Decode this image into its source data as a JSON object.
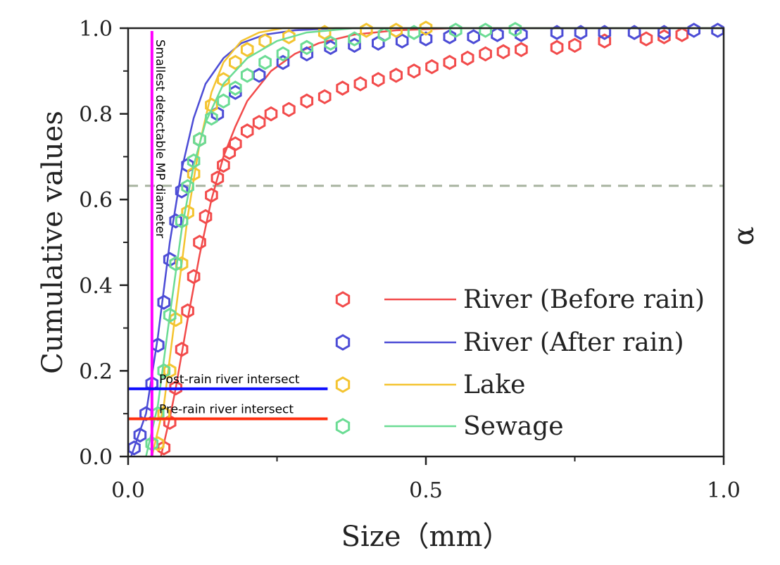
{
  "chart_data": {
    "type": "scatter",
    "xlabel": "Size（mm）",
    "ylabel": "Cumulative values",
    "right_label": "α",
    "xlim": [
      0,
      1.0
    ],
    "ylim": [
      0,
      1.0
    ],
    "xticks": [
      "0.0",
      "0.5",
      "1.0"
    ],
    "yticks": [
      "0.0",
      "0.2",
      "0.4",
      "0.6",
      "0.8",
      "1.0"
    ],
    "legend_position": "bottom-right",
    "grid": false,
    "reference_line": {
      "y": 0.632,
      "style": "dashed",
      "color": "#a8b4a0"
    },
    "annotations": {
      "detect_line": {
        "x": 0.04,
        "label": "Smallest detectable MP diameter",
        "color": "#ff00ff"
      },
      "post_rain": {
        "y": 0.158,
        "x_end": 0.335,
        "label": "Post-rain river intersect",
        "color": "#1010ff"
      },
      "pre_rain": {
        "y": 0.088,
        "x_end": 0.335,
        "label": "Pre-rain river intersect",
        "color": "#ff3010"
      }
    },
    "series": [
      {
        "name": "River (Before rain)",
        "color": "#f24b4b",
        "points": [
          [
            0.06,
            0.02
          ],
          [
            0.07,
            0.08
          ],
          [
            0.08,
            0.16
          ],
          [
            0.09,
            0.25
          ],
          [
            0.1,
            0.34
          ],
          [
            0.11,
            0.42
          ],
          [
            0.12,
            0.5
          ],
          [
            0.13,
            0.56
          ],
          [
            0.14,
            0.61
          ],
          [
            0.15,
            0.65
          ],
          [
            0.16,
            0.68
          ],
          [
            0.17,
            0.71
          ],
          [
            0.18,
            0.73
          ],
          [
            0.2,
            0.76
          ],
          [
            0.22,
            0.78
          ],
          [
            0.24,
            0.8
          ],
          [
            0.27,
            0.81
          ],
          [
            0.3,
            0.83
          ],
          [
            0.33,
            0.84
          ],
          [
            0.36,
            0.86
          ],
          [
            0.39,
            0.87
          ],
          [
            0.42,
            0.88
          ],
          [
            0.45,
            0.89
          ],
          [
            0.48,
            0.9
          ],
          [
            0.51,
            0.91
          ],
          [
            0.54,
            0.92
          ],
          [
            0.57,
            0.93
          ],
          [
            0.6,
            0.94
          ],
          [
            0.63,
            0.945
          ],
          [
            0.66,
            0.95
          ],
          [
            0.72,
            0.955
          ],
          [
            0.75,
            0.96
          ],
          [
            0.8,
            0.97
          ],
          [
            0.87,
            0.975
          ],
          [
            0.9,
            0.98
          ],
          [
            0.93,
            0.985
          ]
        ],
        "fit": [
          [
            0.055,
            0
          ],
          [
            0.07,
            0.09
          ],
          [
            0.08,
            0.16
          ],
          [
            0.1,
            0.32
          ],
          [
            0.12,
            0.47
          ],
          [
            0.14,
            0.6
          ],
          [
            0.16,
            0.7
          ],
          [
            0.18,
            0.77
          ],
          [
            0.2,
            0.83
          ],
          [
            0.24,
            0.9
          ],
          [
            0.28,
            0.94
          ],
          [
            0.32,
            0.965
          ],
          [
            0.38,
            0.985
          ],
          [
            0.45,
            0.995
          ],
          [
            0.55,
            1.0
          ],
          [
            1.0,
            1.0
          ]
        ]
      },
      {
        "name": "River (After rain)",
        "color": "#4c4cd6",
        "points": [
          [
            0.01,
            0.02
          ],
          [
            0.02,
            0.05
          ],
          [
            0.03,
            0.1
          ],
          [
            0.04,
            0.17
          ],
          [
            0.05,
            0.26
          ],
          [
            0.06,
            0.36
          ],
          [
            0.07,
            0.46
          ],
          [
            0.08,
            0.55
          ],
          [
            0.09,
            0.62
          ],
          [
            0.1,
            0.68
          ],
          [
            0.12,
            0.74
          ],
          [
            0.15,
            0.8
          ],
          [
            0.18,
            0.85
          ],
          [
            0.22,
            0.89
          ],
          [
            0.26,
            0.92
          ],
          [
            0.3,
            0.94
          ],
          [
            0.34,
            0.955
          ],
          [
            0.38,
            0.96
          ],
          [
            0.42,
            0.965
          ],
          [
            0.46,
            0.97
          ],
          [
            0.5,
            0.975
          ],
          [
            0.54,
            0.98
          ],
          [
            0.58,
            0.98
          ],
          [
            0.62,
            0.985
          ],
          [
            0.66,
            0.985
          ],
          [
            0.72,
            0.99
          ],
          [
            0.76,
            0.99
          ],
          [
            0.8,
            0.99
          ],
          [
            0.85,
            0.99
          ],
          [
            0.9,
            0.99
          ],
          [
            0.95,
            0.995
          ],
          [
            0.99,
            0.995
          ]
        ],
        "fit": [
          [
            0.005,
            0
          ],
          [
            0.03,
            0.1
          ],
          [
            0.05,
            0.28
          ],
          [
            0.07,
            0.5
          ],
          [
            0.09,
            0.67
          ],
          [
            0.11,
            0.79
          ],
          [
            0.13,
            0.87
          ],
          [
            0.16,
            0.93
          ],
          [
            0.19,
            0.965
          ],
          [
            0.23,
            0.985
          ],
          [
            0.28,
            0.995
          ],
          [
            0.35,
            1.0
          ],
          [
            1.0,
            1.0
          ]
        ]
      },
      {
        "name": "Lake",
        "color": "#f4c430",
        "points": [
          [
            0.05,
            0.03
          ],
          [
            0.06,
            0.1
          ],
          [
            0.07,
            0.2
          ],
          [
            0.08,
            0.32
          ],
          [
            0.09,
            0.45
          ],
          [
            0.1,
            0.57
          ],
          [
            0.11,
            0.66
          ],
          [
            0.12,
            0.74
          ],
          [
            0.14,
            0.82
          ],
          [
            0.16,
            0.88
          ],
          [
            0.18,
            0.92
          ],
          [
            0.2,
            0.95
          ],
          [
            0.23,
            0.97
          ],
          [
            0.27,
            0.98
          ],
          [
            0.33,
            0.99
          ],
          [
            0.4,
            0.995
          ],
          [
            0.45,
            0.995
          ],
          [
            0.5,
            1.0
          ]
        ],
        "fit": [
          [
            0.04,
            0
          ],
          [
            0.06,
            0.12
          ],
          [
            0.08,
            0.34
          ],
          [
            0.1,
            0.56
          ],
          [
            0.12,
            0.73
          ],
          [
            0.14,
            0.85
          ],
          [
            0.16,
            0.92
          ],
          [
            0.19,
            0.97
          ],
          [
            0.22,
            0.99
          ],
          [
            0.26,
            1.0
          ],
          [
            1.0,
            1.0
          ]
        ]
      },
      {
        "name": "Sewage",
        "color": "#6bdc94",
        "points": [
          [
            0.04,
            0.03
          ],
          [
            0.05,
            0.1
          ],
          [
            0.06,
            0.2
          ],
          [
            0.07,
            0.33
          ],
          [
            0.08,
            0.45
          ],
          [
            0.09,
            0.55
          ],
          [
            0.1,
            0.63
          ],
          [
            0.11,
            0.69
          ],
          [
            0.12,
            0.74
          ],
          [
            0.14,
            0.79
          ],
          [
            0.16,
            0.83
          ],
          [
            0.18,
            0.86
          ],
          [
            0.2,
            0.89
          ],
          [
            0.23,
            0.92
          ],
          [
            0.26,
            0.94
          ],
          [
            0.3,
            0.955
          ],
          [
            0.34,
            0.965
          ],
          [
            0.38,
            0.975
          ],
          [
            0.43,
            0.985
          ],
          [
            0.48,
            0.99
          ],
          [
            0.55,
            0.995
          ],
          [
            0.6,
            0.995
          ],
          [
            0.65,
            0.997
          ]
        ],
        "fit": [
          [
            0.03,
            0
          ],
          [
            0.05,
            0.12
          ],
          [
            0.07,
            0.33
          ],
          [
            0.09,
            0.53
          ],
          [
            0.11,
            0.68
          ],
          [
            0.13,
            0.78
          ],
          [
            0.16,
            0.87
          ],
          [
            0.2,
            0.93
          ],
          [
            0.25,
            0.97
          ],
          [
            0.3,
            0.99
          ],
          [
            0.38,
            1.0
          ],
          [
            1.0,
            1.0
          ]
        ]
      }
    ]
  }
}
